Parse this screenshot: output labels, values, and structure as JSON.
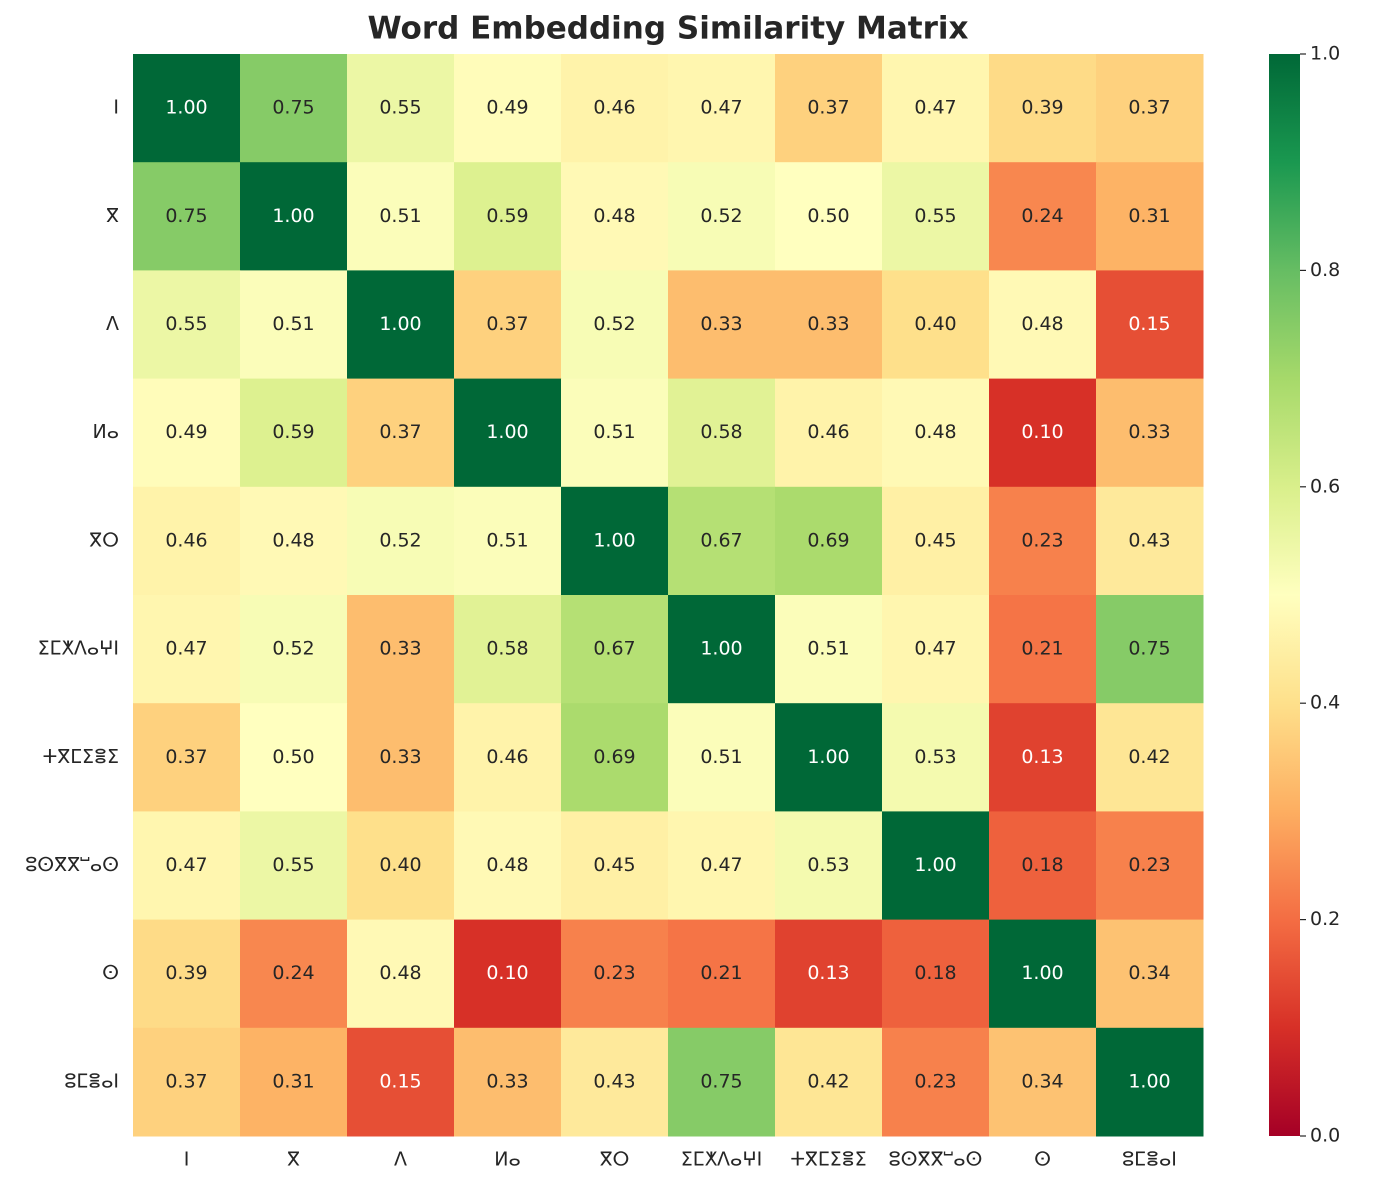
{
  "chart_data": {
    "type": "heatmap",
    "title": "Word Embedding Similarity Matrix",
    "x_labels": [
      "ⵏ",
      "ⴳ",
      "ⴷ",
      "ⵍⴰ",
      "ⴳⵔ",
      "ⵉⵎⵅⴷⴰⵖⵏ",
      "ⵜⴳⵎⵉⴻⵉ",
      "ⵓⵙⴳⴳⵯⴰⵙ",
      "ⵙ",
      "ⵓⵎⴻⴰⵏ"
    ],
    "y_labels": [
      "ⵏ",
      "ⴳ",
      "ⴷ",
      "ⵍⴰ",
      "ⴳⵔ",
      "ⵉⵎⵅⴷⴰⵖⵏ",
      "ⵜⴳⵎⵉⴻⵉ",
      "ⵓⵙⴳⴳⵯⴰⵙ",
      "ⵙ",
      "ⵓⵎⴻⴰⵏ"
    ],
    "values": [
      [
        1,
        0.75,
        0.55,
        0.49,
        0.46,
        0.47,
        0.37,
        0.47,
        0.39,
        0.37
      ],
      [
        0.75,
        1,
        0.51,
        0.59,
        0.48,
        0.52,
        0.5,
        0.55,
        0.24,
        0.31
      ],
      [
        0.55,
        0.51,
        1,
        0.37,
        0.52,
        0.33,
        0.33,
        0.4,
        0.48,
        0.15
      ],
      [
        0.49,
        0.59,
        0.37,
        1,
        0.51,
        0.58,
        0.46,
        0.48,
        0.1,
        0.33
      ],
      [
        0.46,
        0.48,
        0.52,
        0.51,
        1,
        0.67,
        0.69,
        0.45,
        0.23,
        0.43
      ],
      [
        0.47,
        0.52,
        0.33,
        0.58,
        0.67,
        1,
        0.51,
        0.47,
        0.21,
        0.75
      ],
      [
        0.37,
        0.5,
        0.33,
        0.46,
        0.69,
        0.51,
        1,
        0.53,
        0.13,
        0.42
      ],
      [
        0.47,
        0.55,
        0.4,
        0.48,
        0.45,
        0.47,
        0.53,
        1,
        0.18,
        0.23
      ],
      [
        0.39,
        0.24,
        0.48,
        0.1,
        0.23,
        0.21,
        0.13,
        0.18,
        1,
        0.34
      ],
      [
        0.37,
        0.31,
        0.15,
        0.33,
        0.43,
        0.75,
        0.42,
        0.23,
        0.34,
        1
      ]
    ],
    "value_labels": [
      [
        "1.00",
        "0.75",
        "0.55",
        "0.49",
        "0.46",
        "0.47",
        "0.37",
        "0.47",
        "0.39",
        "0.37"
      ],
      [
        "0.75",
        "1.00",
        "0.51",
        "0.59",
        "0.48",
        "0.52",
        "0.50",
        "0.55",
        "0.24",
        "0.31"
      ],
      [
        "0.55",
        "0.51",
        "1.00",
        "0.37",
        "0.52",
        "0.33",
        "0.33",
        "0.40",
        "0.48",
        "0.15"
      ],
      [
        "0.49",
        "0.59",
        "0.37",
        "1.00",
        "0.51",
        "0.58",
        "0.46",
        "0.48",
        "0.10",
        "0.33"
      ],
      [
        "0.46",
        "0.48",
        "0.52",
        "0.51",
        "1.00",
        "0.67",
        "0.69",
        "0.45",
        "0.23",
        "0.43"
      ],
      [
        "0.47",
        "0.52",
        "0.33",
        "0.58",
        "0.67",
        "1.00",
        "0.51",
        "0.47",
        "0.21",
        "0.75"
      ],
      [
        "0.37",
        "0.50",
        "0.33",
        "0.46",
        "0.69",
        "0.51",
        "1.00",
        "0.53",
        "0.13",
        "0.42"
      ],
      [
        "0.47",
        "0.55",
        "0.40",
        "0.48",
        "0.45",
        "0.47",
        "0.53",
        "1.00",
        "0.18",
        "0.23"
      ],
      [
        "0.39",
        "0.24",
        "0.48",
        "0.10",
        "0.23",
        "0.21",
        "0.13",
        "0.18",
        "1.00",
        "0.34"
      ],
      [
        "0.37",
        "0.31",
        "0.15",
        "0.33",
        "0.43",
        "0.75",
        "0.42",
        "0.23",
        "0.34",
        "1.00"
      ]
    ],
    "colorscale": [
      "#a50026",
      "#d73027",
      "#f46d43",
      "#fdae61",
      "#fee08b",
      "#ffffbf",
      "#d9ef8b",
      "#a6d96a",
      "#66bd63",
      "#1a9850",
      "#006837"
    ],
    "clim": [
      0,
      1
    ],
    "cticks": [
      {
        "value": 0,
        "label": "0.0"
      },
      {
        "value": 0.2,
        "label": "0.2"
      },
      {
        "value": 0.4,
        "label": "0.4"
      },
      {
        "value": 0.6,
        "label": "0.6"
      },
      {
        "value": 0.8,
        "label": "0.8"
      },
      {
        "value": 1,
        "label": "1.0"
      }
    ]
  }
}
